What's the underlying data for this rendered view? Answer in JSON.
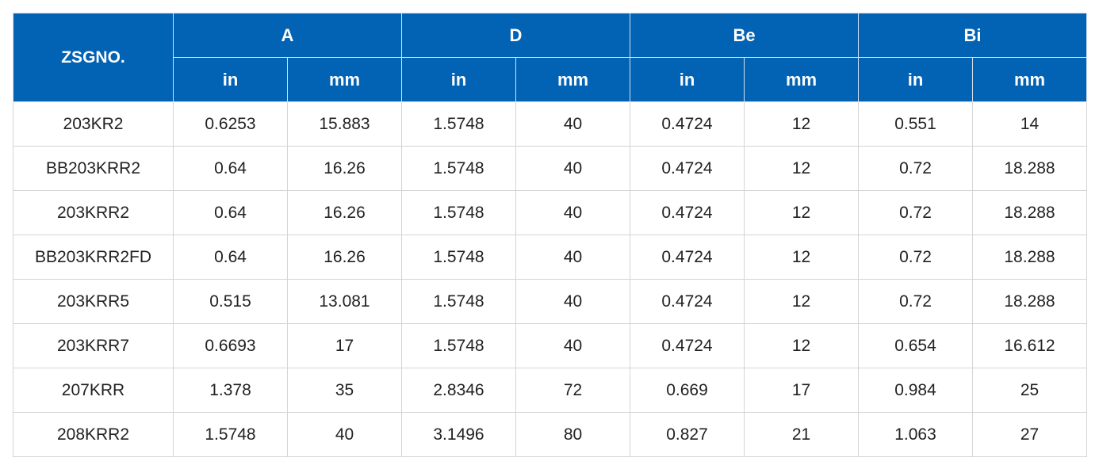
{
  "header": {
    "part_label": "ZSGNO.",
    "groups": [
      "A",
      "D",
      "Be",
      "Bi"
    ],
    "units": [
      "in",
      "mm",
      "in",
      "mm",
      "in",
      "mm",
      "in",
      "mm"
    ]
  },
  "rows": [
    [
      "203KR2",
      "0.6253",
      "15.883",
      "1.5748",
      "40",
      "0.4724",
      "12",
      "0.551",
      "14"
    ],
    [
      "BB203KRR2",
      "0.64",
      "16.26",
      "1.5748",
      "40",
      "0.4724",
      "12",
      "0.72",
      "18.288"
    ],
    [
      "203KRR2",
      "0.64",
      "16.26",
      "1.5748",
      "40",
      "0.4724",
      "12",
      "0.72",
      "18.288"
    ],
    [
      "BB203KRR2FD",
      "0.64",
      "16.26",
      "1.5748",
      "40",
      "0.4724",
      "12",
      "0.72",
      "18.288"
    ],
    [
      "203KRR5",
      "0.515",
      "13.081",
      "1.5748",
      "40",
      "0.4724",
      "12",
      "0.72",
      "18.288"
    ],
    [
      "203KRR7",
      "0.6693",
      "17",
      "1.5748",
      "40",
      "0.4724",
      "12",
      "0.654",
      "16.612"
    ],
    [
      "207KRR",
      "1.378",
      "35",
      "2.8346",
      "72",
      "0.669",
      "17",
      "0.984",
      "25"
    ],
    [
      "208KRR2",
      "1.5748",
      "40",
      "3.1496",
      "80",
      "0.827",
      "21",
      "1.063",
      "27"
    ]
  ],
  "colors": {
    "header_bg": "#0262b3",
    "header_text": "#ffffff",
    "grid_line": "#d4d4d4",
    "cell_text": "#222222"
  }
}
